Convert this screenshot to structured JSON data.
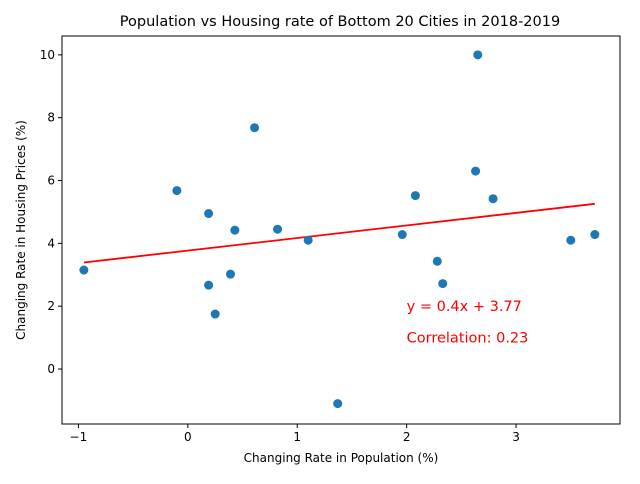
{
  "chart_data": {
    "type": "scatter",
    "title": "Population vs Housing rate of Bottom 20 Cities in 2018-2019",
    "xlabel": "Changing Rate in Population (%)",
    "ylabel": "Changing Rate in Housing Prices (%)",
    "xlim": [
      -1.15,
      3.95
    ],
    "ylim": [
      -1.75,
      10.6
    ],
    "xticks": [
      -1,
      0,
      1,
      2,
      3
    ],
    "yticks": [
      0,
      2,
      4,
      6,
      8,
      10
    ],
    "grid": false,
    "point_color": "#1f77b4",
    "points": [
      {
        "x": -0.95,
        "y": 3.15
      },
      {
        "x": -0.1,
        "y": 5.68
      },
      {
        "x": 0.19,
        "y": 4.95
      },
      {
        "x": 0.19,
        "y": 2.67
      },
      {
        "x": 0.25,
        "y": 1.75
      },
      {
        "x": 0.39,
        "y": 3.02
      },
      {
        "x": 0.43,
        "y": 4.42
      },
      {
        "x": 0.61,
        "y": 7.68
      },
      {
        "x": 0.82,
        "y": 4.45
      },
      {
        "x": 1.1,
        "y": 4.1
      },
      {
        "x": 1.37,
        "y": -1.1
      },
      {
        "x": 1.96,
        "y": 4.28
      },
      {
        "x": 2.08,
        "y": 5.52
      },
      {
        "x": 2.28,
        "y": 3.43
      },
      {
        "x": 2.33,
        "y": 2.72
      },
      {
        "x": 2.63,
        "y": 6.3
      },
      {
        "x": 2.65,
        "y": 10.0
      },
      {
        "x": 2.79,
        "y": 5.42
      },
      {
        "x": 3.5,
        "y": 4.1
      },
      {
        "x": 3.72,
        "y": 4.28
      }
    ],
    "trendline": {
      "slope": 0.4,
      "intercept": 3.77,
      "x_range": [
        -0.95,
        3.72
      ],
      "color": "#ff0000"
    },
    "annotations": [
      {
        "text": "y = 0.4x + 3.77",
        "x": 2.0,
        "y": 2.0,
        "color": "#ff0000"
      },
      {
        "text": "Correlation: 0.23",
        "x": 2.0,
        "y": 1.0,
        "color": "#ff0000"
      }
    ]
  }
}
